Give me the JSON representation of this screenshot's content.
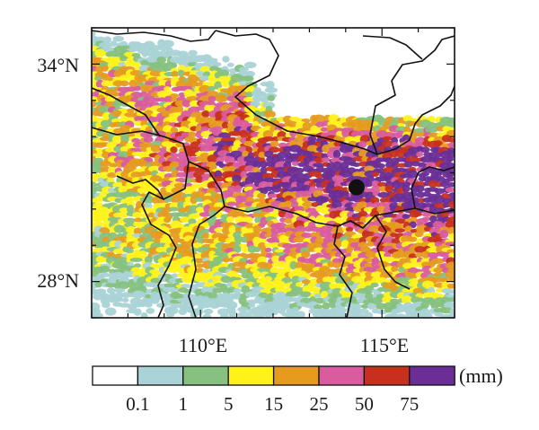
{
  "map": {
    "lat_ticks": [
      {
        "value": 34,
        "label": "34°N"
      },
      {
        "value": 28,
        "label": "28°N"
      }
    ],
    "lon_ticks": [
      {
        "value": 110,
        "label": "110°E"
      },
      {
        "value": 115,
        "label": "115°E"
      }
    ],
    "extent": {
      "lon_min": 107,
      "lon_max": 117,
      "lat_min": 27,
      "lat_max": 35
    },
    "station_marker": {
      "lon": 114.3,
      "lat": 30.6,
      "color": "#111111"
    }
  },
  "legend": {
    "unit_label": "(mm)",
    "bins": [
      {
        "color": "#ffffff"
      },
      {
        "color": "#a9d3d6"
      },
      {
        "color": "#86c17f"
      },
      {
        "color": "#fff21a"
      },
      {
        "color": "#e69b1f"
      },
      {
        "color": "#d95c9e"
      },
      {
        "color": "#c8301e"
      },
      {
        "color": "#6a2e96"
      }
    ],
    "thresholds": [
      "0.1",
      "1",
      "5",
      "15",
      "25",
      "50",
      "75"
    ]
  }
}
